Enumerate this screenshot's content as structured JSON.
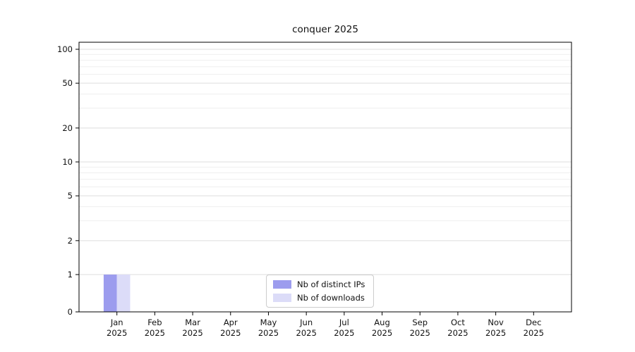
{
  "chart_data": {
    "type": "bar",
    "title": "conquer 2025",
    "categories": [
      "Jan",
      "Feb",
      "Mar",
      "Apr",
      "May",
      "Jun",
      "Jul",
      "Aug",
      "Sep",
      "Oct",
      "Nov",
      "Dec"
    ],
    "year": "2025",
    "series": [
      {
        "name": "Nb of distinct IPs",
        "color": "#9c9cee",
        "values": [
          1,
          0,
          0,
          0,
          0,
          0,
          0,
          0,
          0,
          0,
          0,
          0
        ]
      },
      {
        "name": "Nb of downloads",
        "color": "#dcdcf8",
        "values": [
          1,
          0,
          0,
          0,
          0,
          0,
          0,
          0,
          0,
          0,
          0,
          0
        ]
      }
    ],
    "yticks": [
      0,
      1,
      2,
      5,
      10,
      20,
      50,
      100
    ],
    "scale": "symlog",
    "ylim": [
      0,
      115
    ],
    "grid": "both",
    "legend_position": "lower center",
    "colors": {
      "axis": "#000000",
      "grid_major": "#dddddd",
      "grid_minor": "#efefef"
    }
  }
}
